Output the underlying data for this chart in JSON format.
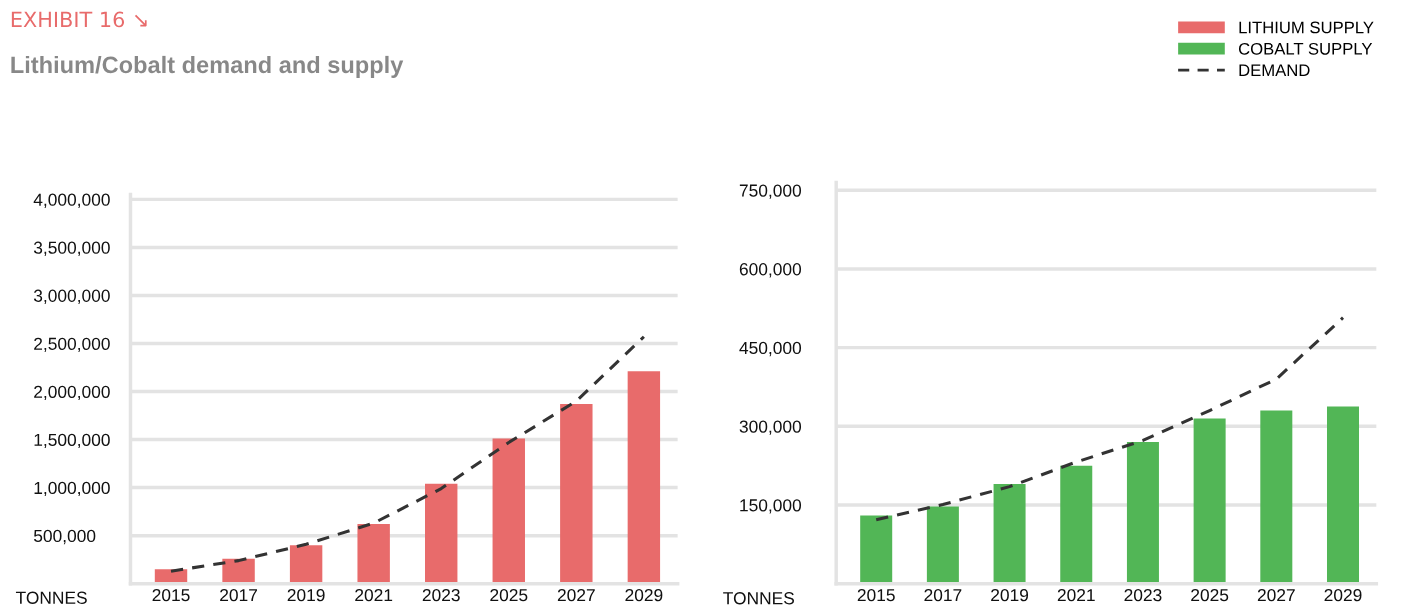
{
  "chart_data": [
    {
      "type": "bar",
      "title": "EXHIBIT 16 ↘",
      "subtitle": "Lithium/Cobalt demand and supply",
      "ylabel": "TONNES",
      "categories": [
        "2015",
        "2017",
        "2019",
        "2021",
        "2023",
        "2025",
        "2027",
        "2029"
      ],
      "series": [
        {
          "name": "LITHIUM SUPPLY",
          "color": "#e86b6b",
          "values": [
            150000,
            260000,
            400000,
            620000,
            1040000,
            1510000,
            1870000,
            2210000
          ]
        },
        {
          "type": "line",
          "color": "#333333",
          "line_style": "dashed",
          "values": [
            130000,
            240000,
            410000,
            630000,
            990000,
            1470000,
            1900000,
            2570000
          ]
        }
      ],
      "ylim": [
        0,
        4050000
      ],
      "yticks": [
        {
          "value": 500000,
          "label": "500,000"
        },
        {
          "value": 1000000,
          "label": "1,000,000"
        },
        {
          "value": 1500000,
          "label": "1,500,000"
        },
        {
          "value": 2000000,
          "label": "2,000,000"
        },
        {
          "value": 2500000,
          "label": "2,500,000"
        },
        {
          "value": 3000000,
          "label": "3,000,000"
        },
        {
          "value": 3500000,
          "label": "3,500,000"
        },
        {
          "value": 4000000,
          "label": "4,000,000"
        }
      ],
      "grid": "y",
      "legend": "top right"
    },
    {
      "type": "bar",
      "ylabel": "TONNES",
      "categories": [
        "2015",
        "2017",
        "2019",
        "2021",
        "2023",
        "2025",
        "2027",
        "2029"
      ],
      "series": [
        {
          "name": "COBALT SUPPLY",
          "color": "#52b656",
          "values": [
            130000,
            147000,
            190000,
            225000,
            270000,
            315000,
            330000,
            338000
          ]
        },
        {
          "name": "DEMAND",
          "type": "line",
          "color": "#333333",
          "line_style": "dashed",
          "values": [
            122000,
            151000,
            185000,
            232000,
            273000,
            330000,
            390000,
            507000
          ]
        }
      ],
      "ylim": [
        0,
        765000
      ],
      "yticks": [
        {
          "value": 150000,
          "label": "150,000"
        },
        {
          "value": 300000,
          "label": "300,000"
        },
        {
          "value": 450000,
          "label": "450,000"
        },
        {
          "value": 600000,
          "label": "600,000"
        },
        {
          "value": 750000,
          "label": "750,000"
        }
      ],
      "grid": "y",
      "legend": "top right"
    }
  ]
}
